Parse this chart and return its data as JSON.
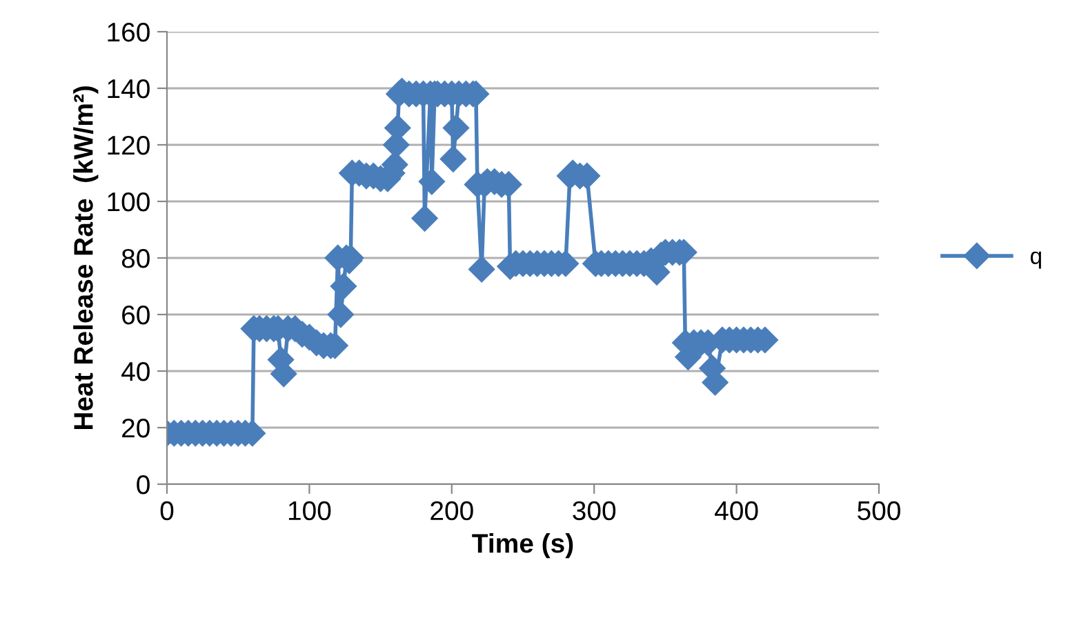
{
  "chart_data": {
    "type": "line",
    "xlabel": "Time (s)",
    "ylabel": "Heat Release Rate  (kW/m²)",
    "series": [
      {
        "name": "q",
        "color": "#4a7ebb",
        "x": [
          0,
          5,
          10,
          15,
          20,
          25,
          30,
          35,
          40,
          45,
          50,
          55,
          60,
          61,
          65,
          70,
          75,
          78,
          80,
          82,
          85,
          90,
          95,
          100,
          105,
          110,
          115,
          118,
          120,
          122,
          124,
          126,
          128,
          129,
          130,
          135,
          140,
          145,
          150,
          155,
          158,
          160,
          161,
          162,
          163,
          165,
          170,
          175,
          180,
          181,
          185,
          186,
          188,
          190,
          195,
          200,
          201,
          203,
          205,
          210,
          215,
          217,
          218,
          221,
          223,
          225,
          230,
          235,
          240,
          241,
          245,
          250,
          255,
          260,
          265,
          270,
          275,
          280,
          283,
          285,
          290,
          295,
          301,
          305,
          310,
          315,
          320,
          325,
          330,
          335,
          340,
          344,
          347,
          350,
          355,
          360,
          363,
          364,
          366,
          370,
          375,
          380,
          383,
          385,
          390,
          395,
          400,
          405,
          410,
          415,
          420
        ],
        "values": [
          18,
          18,
          18,
          18,
          18,
          18,
          18,
          18,
          18,
          18,
          18,
          18,
          18,
          55,
          55,
          55,
          55,
          55,
          44,
          39,
          55,
          55,
          53,
          52,
          50,
          49,
          49,
          49,
          80,
          60,
          70,
          80,
          79,
          80,
          110,
          110,
          109,
          109,
          108,
          108,
          110,
          113,
          120,
          126,
          138,
          139,
          138,
          138,
          138,
          94,
          138,
          107,
          138,
          138,
          138,
          138,
          115,
          126,
          138,
          138,
          138,
          138,
          106,
          76,
          106,
          107,
          107,
          106,
          106,
          77,
          78,
          78,
          78,
          78,
          78,
          78,
          78,
          78,
          109,
          110,
          109,
          109,
          78,
          78,
          78,
          78,
          78,
          78,
          78,
          78,
          79,
          75,
          81,
          82,
          82,
          82,
          82,
          50,
          45,
          50,
          50,
          50,
          41,
          36,
          51,
          51,
          51,
          51,
          51,
          51,
          51
        ]
      }
    ],
    "xlim": [
      0,
      500
    ],
    "xticks": [
      0,
      100,
      200,
      300,
      400,
      500
    ],
    "ylim": [
      0,
      160
    ],
    "yticks": [
      0,
      20,
      40,
      60,
      80,
      100,
      120,
      140,
      160
    ],
    "grid": "y",
    "legend": "right",
    "marker": "diamond",
    "line_style": "solid"
  }
}
